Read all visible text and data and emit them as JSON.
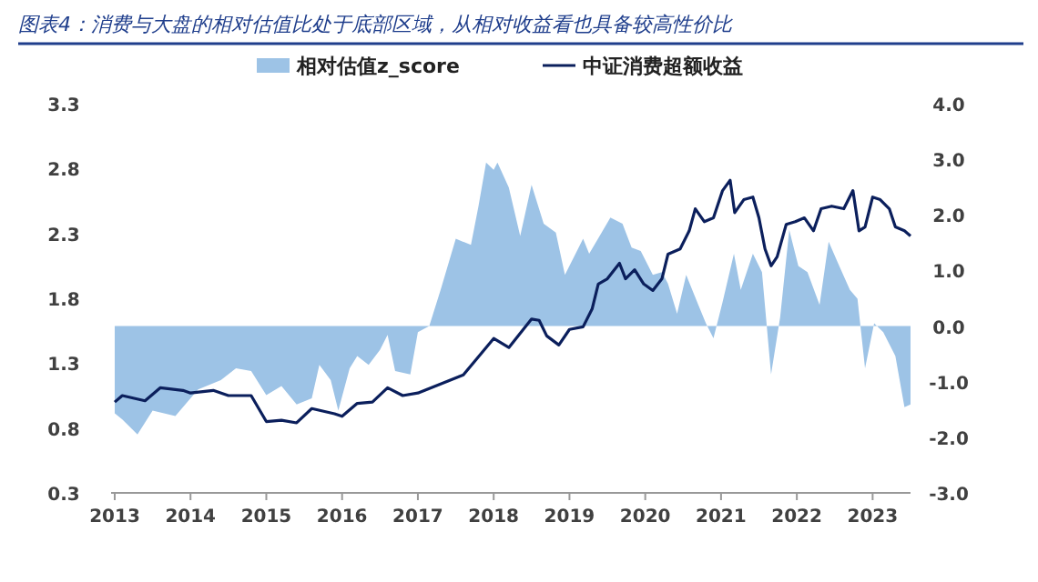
{
  "chart_data": {
    "type": "line",
    "title": "图表4：消费与大盘的相对估值比处于底部区域，从相对收益看也具备较高性价比",
    "legend": "top",
    "grid": false,
    "xlim": [
      2013,
      2023.5
    ],
    "xticks": [
      2013,
      2014,
      2015,
      2016,
      2017,
      2018,
      2019,
      2020,
      2021,
      2022,
      2023
    ],
    "ylim": [
      0.3,
      3.3
    ],
    "yticks": [
      0.3,
      0.8,
      1.3,
      1.8,
      2.3,
      2.8,
      3.3
    ],
    "y2lim": [
      -3,
      4
    ],
    "y2ticks": [
      {
        "value": -3,
        "label": "-3.0"
      },
      {
        "value": -2,
        "label": "-2.0"
      },
      {
        "value": -1,
        "label": "-1.0"
      },
      {
        "value": 0,
        "label": "0.0"
      },
      {
        "value": 1,
        "label": "1.0"
      },
      {
        "value": 2,
        "label": "2.0"
      },
      {
        "value": 3,
        "label": "3.0"
      },
      {
        "value": 4,
        "label": "4.0"
      }
    ],
    "series": [
      {
        "name": "相对估值z_score",
        "type": "area",
        "axis": "y2",
        "color": "#9dc3e6",
        "x": [
          2013.0,
          2013.1,
          2013.3,
          2013.5,
          2013.8,
          2014.1,
          2014.4,
          2014.6,
          2014.8,
          2015.0,
          2015.2,
          2015.4,
          2015.6,
          2015.7,
          2015.85,
          2015.95,
          2016.1,
          2016.2,
          2016.35,
          2016.5,
          2016.6,
          2016.7,
          2016.9,
          2017.0,
          2017.15,
          2017.3,
          2017.5,
          2017.7,
          2017.8,
          2017.9,
          2018.0,
          2018.05,
          2018.2,
          2018.35,
          2018.5,
          2018.66,
          2018.82,
          2018.94,
          2019.18,
          2019.26,
          2019.54,
          2019.7,
          2019.82,
          2019.94,
          2020.1,
          2020.22,
          2020.3,
          2020.42,
          2020.54,
          2020.7,
          2020.8,
          2020.9,
          2021.02,
          2021.17,
          2021.26,
          2021.42,
          2021.54,
          2021.66,
          2021.78,
          2021.9,
          2022.02,
          2022.14,
          2022.3,
          2022.42,
          2022.54,
          2022.7,
          2022.8,
          2022.9,
          2023.02,
          2023.14,
          2023.3,
          2023.42,
          2023.5
        ],
        "values": [
          -1.57,
          -1.68,
          -1.95,
          -1.52,
          -1.62,
          -1.14,
          -0.97,
          -0.76,
          -0.81,
          -1.24,
          -1.08,
          -1.41,
          -1.3,
          -0.7,
          -0.97,
          -1.52,
          -0.76,
          -0.54,
          -0.7,
          -0.43,
          -0.16,
          -0.81,
          -0.87,
          -0.11,
          0,
          0.65,
          1.57,
          1.46,
          2.16,
          2.94,
          2.81,
          2.94,
          2.49,
          1.62,
          2.54,
          1.84,
          1.68,
          0.92,
          1.57,
          1.3,
          1.95,
          1.84,
          1.41,
          1.35,
          0.92,
          0.97,
          0.76,
          0.22,
          0.92,
          0.38,
          0.05,
          -0.22,
          0.43,
          1.3,
          0.65,
          1.3,
          0.97,
          -0.87,
          0.16,
          1.73,
          1.08,
          0.97,
          0.38,
          1.52,
          1.14,
          0.65,
          0.49,
          -0.76,
          0.05,
          -0.11,
          -0.54,
          -1.46,
          -1.41
        ]
      },
      {
        "name": "中证消费超额收益",
        "axis": "y",
        "color": "#0b1f5c",
        "x": [
          2013.0,
          2013.1,
          2013.4,
          2013.6,
          2013.9,
          2014.0,
          2014.3,
          2014.5,
          2014.8,
          2015.0,
          2015.2,
          2015.4,
          2015.6,
          2015.9,
          2016.0,
          2016.2,
          2016.4,
          2016.6,
          2016.8,
          2017.0,
          2017.3,
          2017.6,
          2017.8,
          2017.9,
          2018.0,
          2018.2,
          2018.35,
          2018.5,
          2018.6,
          2018.7,
          2018.86,
          2019.0,
          2019.18,
          2019.3,
          2019.38,
          2019.5,
          2019.66,
          2019.74,
          2019.86,
          2019.98,
          2020.1,
          2020.22,
          2020.3,
          2020.46,
          2020.58,
          2020.66,
          2020.78,
          2020.9,
          2021.02,
          2021.12,
          2021.18,
          2021.3,
          2021.42,
          2021.5,
          2021.58,
          2021.66,
          2021.74,
          2021.86,
          2021.98,
          2022.1,
          2022.22,
          2022.32,
          2022.46,
          2022.62,
          2022.74,
          2022.82,
          2022.9,
          2023.0,
          2023.1,
          2023.22,
          2023.3,
          2023.42,
          2023.5
        ],
        "values": [
          1.0,
          1.05,
          1.01,
          1.11,
          1.09,
          1.07,
          1.09,
          1.05,
          1.05,
          0.85,
          0.86,
          0.84,
          0.95,
          0.91,
          0.89,
          0.99,
          1.0,
          1.11,
          1.05,
          1.07,
          1.14,
          1.21,
          1.35,
          1.42,
          1.49,
          1.42,
          1.53,
          1.64,
          1.63,
          1.51,
          1.44,
          1.56,
          1.58,
          1.72,
          1.91,
          1.95,
          2.07,
          1.95,
          2.02,
          1.91,
          1.86,
          1.95,
          2.14,
          2.18,
          2.32,
          2.49,
          2.39,
          2.42,
          2.63,
          2.71,
          2.46,
          2.56,
          2.58,
          2.42,
          2.18,
          2.05,
          2.12,
          2.37,
          2.39,
          2.42,
          2.32,
          2.49,
          2.51,
          2.49,
          2.63,
          2.32,
          2.35,
          2.58,
          2.56,
          2.49,
          2.35,
          2.32,
          2.28
        ]
      }
    ]
  }
}
